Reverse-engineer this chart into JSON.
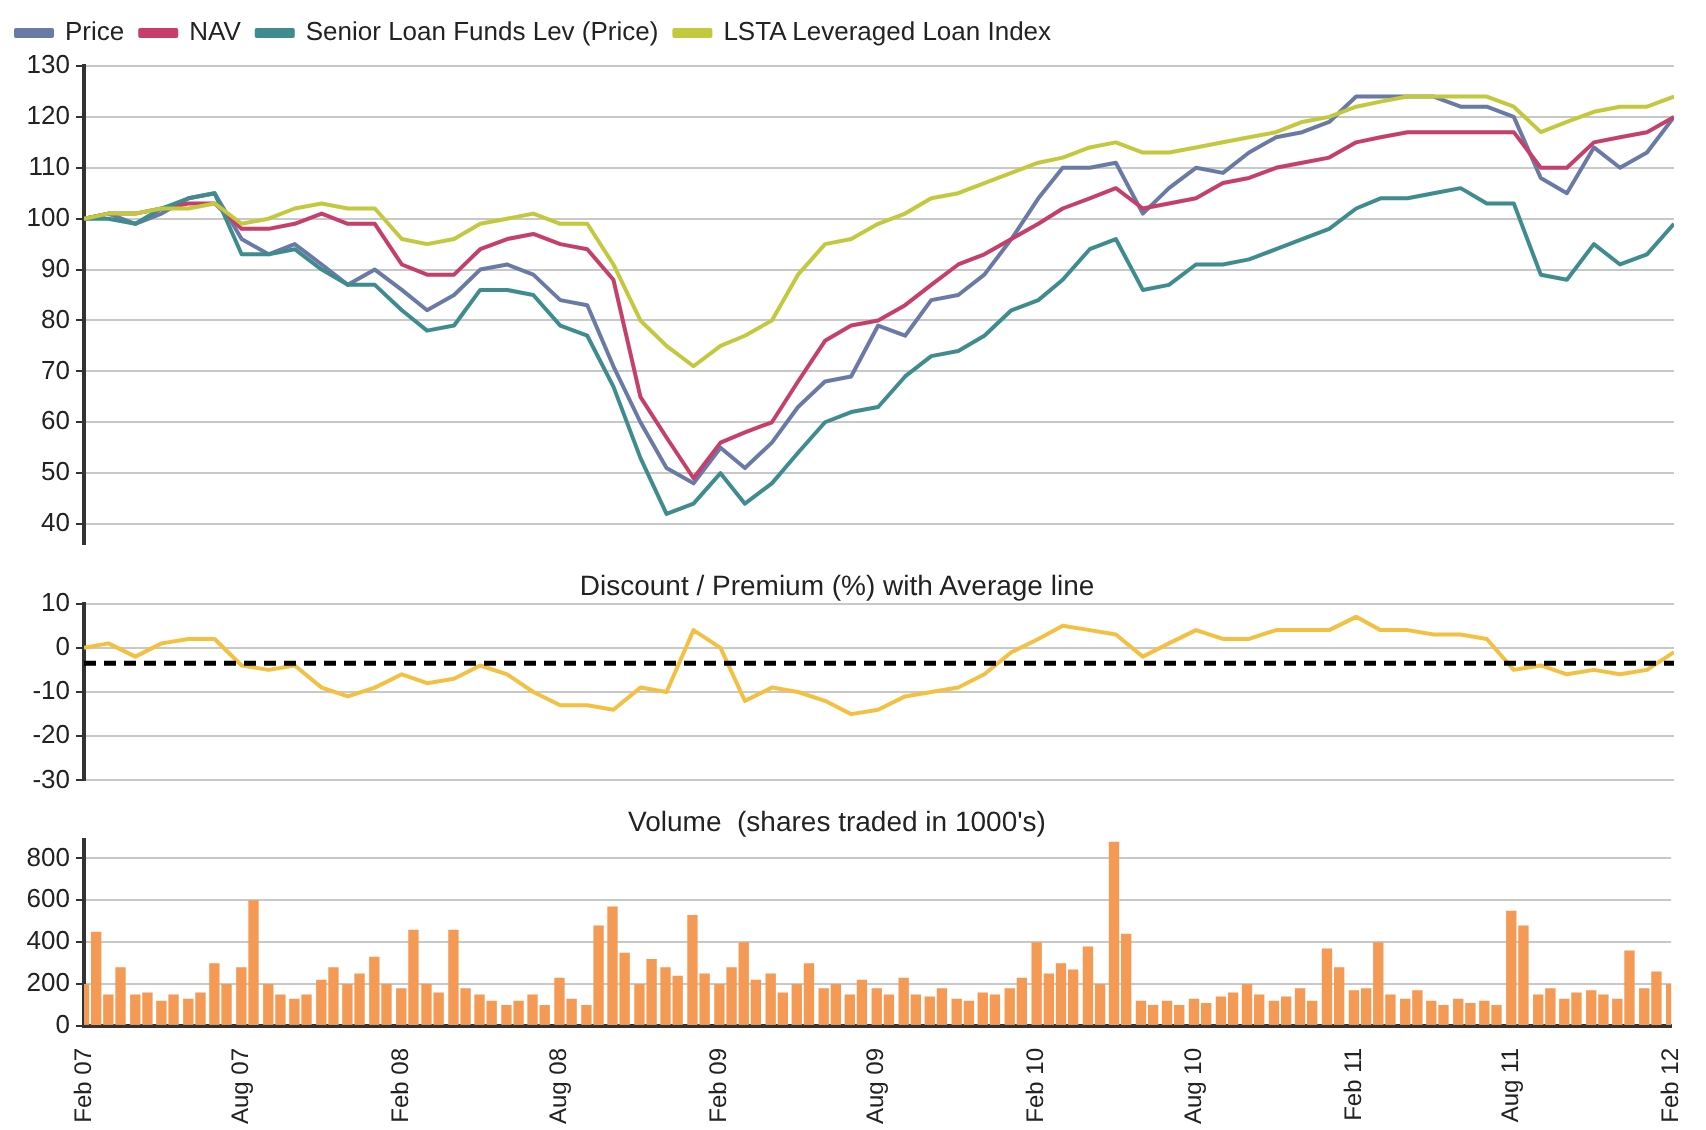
{
  "chart_data": [
    {
      "type": "line",
      "legend": "top left",
      "grid": "y",
      "tick_labels": "y",
      "x": [
        "2007-02",
        "2007-03",
        "2007-04",
        "2007-05",
        "2007-06",
        "2007-07",
        "2007-08",
        "2007-09",
        "2007-10",
        "2007-11",
        "2007-12",
        "2008-01",
        "2008-02",
        "2008-03",
        "2008-04",
        "2008-05",
        "2008-06",
        "2008-07",
        "2008-08",
        "2008-09",
        "2008-10",
        "2008-11",
        "2008-12",
        "2009-01",
        "2009-02",
        "2009-03",
        "2009-04",
        "2009-05",
        "2009-06",
        "2009-07",
        "2009-08",
        "2009-09",
        "2009-10",
        "2009-11",
        "2009-12",
        "2010-01",
        "2010-02",
        "2010-03",
        "2010-04",
        "2010-05",
        "2010-06",
        "2010-07",
        "2010-08",
        "2010-09",
        "2010-10",
        "2010-11",
        "2010-12",
        "2011-01",
        "2011-02",
        "2011-03",
        "2011-04",
        "2011-05",
        "2011-06",
        "2011-07",
        "2011-08",
        "2011-09",
        "2011-10",
        "2011-11",
        "2011-12",
        "2012-01",
        "2012-02"
      ],
      "series": [
        {
          "name": "Price",
          "color": "#6a7aa6",
          "values": [
            100,
            101,
            99,
            101,
            104,
            105,
            96,
            93,
            95,
            91,
            87,
            90,
            86,
            82,
            85,
            90,
            91,
            89,
            84,
            83,
            71,
            60,
            51,
            48,
            55,
            51,
            56,
            63,
            68,
            69,
            79,
            77,
            84,
            85,
            89,
            96,
            104,
            110,
            110,
            111,
            101,
            106,
            110,
            109,
            113,
            116,
            117,
            119,
            124,
            124,
            124,
            124,
            122,
            122,
            120,
            108,
            105,
            114,
            110,
            113,
            120
          ]
        },
        {
          "name": "NAV",
          "color": "#c53f6a",
          "values": [
            100,
            101,
            101,
            102,
            103,
            103,
            98,
            98,
            99,
            101,
            99,
            99,
            91,
            89,
            89,
            94,
            96,
            97,
            95,
            94,
            88,
            65,
            57,
            49,
            56,
            58,
            60,
            68,
            76,
            79,
            80,
            83,
            87,
            91,
            93,
            96,
            99,
            102,
            104,
            106,
            102,
            103,
            104,
            107,
            108,
            110,
            111,
            112,
            115,
            116,
            117,
            117,
            117,
            117,
            117,
            110,
            110,
            115,
            116,
            117,
            120
          ]
        },
        {
          "name": "Senior Loan Funds Lev (Price)",
          "color": "#3e8c8e",
          "values": [
            100,
            100,
            99,
            102,
            104,
            105,
            93,
            93,
            94,
            90,
            87,
            87,
            82,
            78,
            79,
            86,
            86,
            85,
            79,
            77,
            67,
            53,
            42,
            44,
            50,
            44,
            48,
            54,
            60,
            62,
            63,
            69,
            73,
            74,
            77,
            82,
            84,
            88,
            94,
            96,
            86,
            87,
            91,
            91,
            92,
            94,
            96,
            98,
            102,
            104,
            104,
            105,
            106,
            103,
            103,
            89,
            88,
            95,
            91,
            93,
            99
          ]
        },
        {
          "name": "LSTA Leveraged Loan Index",
          "color": "#c3c93c",
          "values": [
            100,
            101,
            101,
            102,
            102,
            103,
            99,
            100,
            102,
            103,
            102,
            102,
            96,
            95,
            96,
            99,
            100,
            101,
            99,
            99,
            91,
            80,
            75,
            71,
            75,
            77,
            80,
            89,
            95,
            96,
            99,
            101,
            104,
            105,
            107,
            109,
            111,
            112,
            114,
            115,
            113,
            113,
            114,
            115,
            116,
            117,
            119,
            120,
            122,
            123,
            124,
            124,
            124,
            124,
            122,
            117,
            119,
            121,
            122,
            122,
            124
          ]
        }
      ],
      "ylim": [
        36,
        130
      ],
      "yticks": [
        40,
        50,
        60,
        70,
        80,
        90,
        100,
        110,
        120,
        130
      ],
      "xlim": [
        "2007-02",
        "2012-02"
      ]
    },
    {
      "type": "line",
      "title": "Discount / Premium (%) with Average line",
      "grid": "y",
      "tick_labels": "y",
      "color": "#f4c042",
      "x": [
        "2007-02",
        "2007-03",
        "2007-04",
        "2007-05",
        "2007-06",
        "2007-07",
        "2007-08",
        "2007-09",
        "2007-10",
        "2007-11",
        "2007-12",
        "2008-01",
        "2008-02",
        "2008-03",
        "2008-04",
        "2008-05",
        "2008-06",
        "2008-07",
        "2008-08",
        "2008-09",
        "2008-10",
        "2008-11",
        "2008-12",
        "2009-01",
        "2009-02",
        "2009-03",
        "2009-04",
        "2009-05",
        "2009-06",
        "2009-07",
        "2009-08",
        "2009-09",
        "2009-10",
        "2009-11",
        "2009-12",
        "2010-01",
        "2010-02",
        "2010-03",
        "2010-04",
        "2010-05",
        "2010-06",
        "2010-07",
        "2010-08",
        "2010-09",
        "2010-10",
        "2010-11",
        "2010-12",
        "2011-01",
        "2011-02",
        "2011-03",
        "2011-04",
        "2011-05",
        "2011-06",
        "2011-07",
        "2011-08",
        "2011-09",
        "2011-10",
        "2011-11",
        "2011-12",
        "2012-01",
        "2012-02"
      ],
      "values": [
        0,
        1,
        -2,
        1,
        2,
        2,
        -4,
        -5,
        -4,
        -9,
        -11,
        -9,
        -6,
        -8,
        -7,
        -4,
        -6,
        -10,
        -13,
        -13,
        -14,
        -9,
        -10,
        4,
        0,
        -12,
        -9,
        -10,
        -12,
        -15,
        -14,
        -11,
        -10,
        -9,
        -6,
        -1,
        2,
        5,
        4,
        3,
        -2,
        1,
        4,
        2,
        2,
        4,
        4,
        4,
        7,
        4,
        4,
        3,
        3,
        2,
        -5,
        -4,
        -6,
        -5,
        -6,
        -5,
        -1
      ],
      "ref_lines": [
        {
          "axis": "y",
          "value": -3.5,
          "color": "#000000",
          "line_style": "dashed"
        }
      ],
      "ylim": [
        -30,
        10
      ],
      "yticks": [
        -30,
        -20,
        -10,
        0,
        10
      ],
      "xlim": [
        "2007-02",
        "2012-02"
      ]
    },
    {
      "type": "bar",
      "title": "Volume  (shares traded in 1000's)",
      "grid": "y",
      "color": "#f49a55",
      "x": [
        "2007-02-01",
        "2007-02-15",
        "2007-03-01",
        "2007-03-15",
        "2007-04-01",
        "2007-04-15",
        "2007-05-01",
        "2007-05-15",
        "2007-06-01",
        "2007-06-15",
        "2007-07-01",
        "2007-07-15",
        "2007-08-01",
        "2007-08-15",
        "2007-09-01",
        "2007-09-15",
        "2007-10-01",
        "2007-10-15",
        "2007-11-01",
        "2007-11-15",
        "2007-12-01",
        "2007-12-15",
        "2008-01-01",
        "2008-01-15",
        "2008-02-01",
        "2008-02-15",
        "2008-03-01",
        "2008-03-15",
        "2008-04-01",
        "2008-04-15",
        "2008-05-01",
        "2008-05-15",
        "2008-06-01",
        "2008-06-15",
        "2008-07-01",
        "2008-07-15",
        "2008-08-01",
        "2008-08-15",
        "2008-09-01",
        "2008-09-15",
        "2008-10-01",
        "2008-10-15",
        "2008-11-01",
        "2008-11-15",
        "2008-12-01",
        "2008-12-15",
        "2009-01-01",
        "2009-01-15",
        "2009-02-01",
        "2009-02-15",
        "2009-03-01",
        "2009-03-15",
        "2009-04-01",
        "2009-04-15",
        "2009-05-01",
        "2009-05-15",
        "2009-06-01",
        "2009-06-15",
        "2009-07-01",
        "2009-07-15",
        "2009-08-01",
        "2009-08-15",
        "2009-09-01",
        "2009-09-15",
        "2009-10-01",
        "2009-10-15",
        "2009-11-01",
        "2009-11-15",
        "2009-12-01",
        "2009-12-15",
        "2010-01-01",
        "2010-01-15",
        "2010-02-01",
        "2010-02-15",
        "2010-03-01",
        "2010-03-15",
        "2010-04-01",
        "2010-04-15",
        "2010-05-01",
        "2010-05-15",
        "2010-06-01",
        "2010-06-15",
        "2010-07-01",
        "2010-07-15",
        "2010-08-01",
        "2010-08-15",
        "2010-09-01",
        "2010-09-15",
        "2010-10-01",
        "2010-10-15",
        "2010-11-01",
        "2010-11-15",
        "2010-12-01",
        "2010-12-15",
        "2011-01-01",
        "2011-01-15",
        "2011-02-01",
        "2011-02-15",
        "2011-03-01",
        "2011-03-15",
        "2011-04-01",
        "2011-04-15",
        "2011-05-01",
        "2011-05-15",
        "2011-06-01",
        "2011-06-15",
        "2011-07-01",
        "2011-07-15",
        "2011-08-01",
        "2011-08-15",
        "2011-09-01",
        "2011-09-15",
        "2011-10-01",
        "2011-10-15",
        "2011-11-01",
        "2011-11-15",
        "2011-12-01",
        "2011-12-15",
        "2012-01-01",
        "2012-01-15",
        "2012-02-01"
      ],
      "values": [
        200,
        450,
        150,
        280,
        150,
        160,
        120,
        150,
        130,
        160,
        300,
        200,
        280,
        600,
        200,
        150,
        130,
        150,
        220,
        280,
        200,
        250,
        330,
        200,
        180,
        460,
        200,
        160,
        460,
        180,
        150,
        120,
        100,
        120,
        150,
        100,
        230,
        130,
        100,
        480,
        570,
        350,
        200,
        320,
        280,
        240,
        530,
        250,
        200,
        280,
        400,
        220,
        250,
        160,
        200,
        300,
        180,
        200,
        150,
        220,
        180,
        150,
        230,
        150,
        140,
        180,
        130,
        120,
        160,
        150,
        180,
        230,
        400,
        250,
        300,
        270,
        380,
        200,
        880,
        440,
        120,
        100,
        120,
        100,
        130,
        110,
        140,
        160,
        200,
        150,
        120,
        140,
        180,
        120,
        370,
        280,
        170,
        180,
        400,
        150,
        130,
        170,
        120,
        100,
        130,
        110,
        120,
        100,
        550,
        480,
        150,
        180,
        130,
        160,
        170,
        150,
        130,
        360,
        180,
        260,
        200
      ],
      "ylim": [
        0,
        890
      ],
      "yticks": [
        0,
        200,
        400,
        600,
        800
      ],
      "xlim": [
        "2007-02",
        "2012-02"
      ],
      "xticks": [
        {
          "value": "2007-02",
          "label": "Feb 07"
        },
        {
          "value": "2007-08",
          "label": "Aug 07"
        },
        {
          "value": "2008-02",
          "label": "Feb 08"
        },
        {
          "value": "2008-08",
          "label": "Aug 08"
        },
        {
          "value": "2009-02",
          "label": "Feb 09"
        },
        {
          "value": "2009-08",
          "label": "Aug 09"
        },
        {
          "value": "2010-02",
          "label": "Feb 10"
        },
        {
          "value": "2010-08",
          "label": "Aug 10"
        },
        {
          "value": "2011-02",
          "label": "Feb 11"
        },
        {
          "value": "2011-08",
          "label": "Aug 11"
        },
        {
          "value": "2012-02",
          "label": "Feb 12"
        }
      ]
    }
  ]
}
